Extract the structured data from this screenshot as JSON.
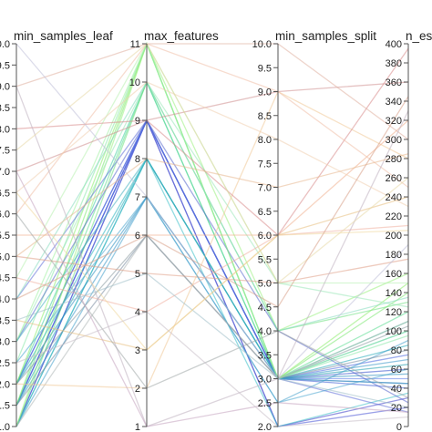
{
  "chart_data": {
    "type": "parallel_coordinates",
    "axes": [
      {
        "name": "min_samples_leaf",
        "range": [
          1.0,
          10.0
        ],
        "step": 0.5,
        "decimals": 1
      },
      {
        "name": "max_features",
        "range": [
          1,
          11
        ],
        "step": 1,
        "decimals": 0
      },
      {
        "name": "min_samples_split",
        "range": [
          2.0,
          10.0
        ],
        "step": 0.5,
        "decimals": 1
      },
      {
        "name": "n_estimators",
        "range": [
          0,
          400
        ],
        "step": 20,
        "decimals": 0
      }
    ],
    "records": [
      [
        1.0,
        9,
        3.0,
        45,
        "#3a4fd0"
      ],
      [
        1.5,
        9,
        3.0,
        60,
        "#3551cc"
      ],
      [
        2.0,
        9,
        3.0,
        40,
        "#3d5bd4"
      ],
      [
        1.5,
        9,
        2.0,
        30,
        "#4040c8"
      ],
      [
        1.0,
        9,
        2.0,
        20,
        "#4a55d6"
      ],
      [
        2.0,
        9,
        3.0,
        75,
        "#4f6ae0"
      ],
      [
        1.5,
        9,
        3.0,
        50,
        "#5a7ae8"
      ],
      [
        1.0,
        8,
        3.0,
        65,
        "#22a0b0"
      ],
      [
        1.5,
        8,
        3.0,
        85,
        "#20a8b8"
      ],
      [
        2.0,
        8,
        3.0,
        100,
        "#2cb5c0"
      ],
      [
        1.0,
        8,
        2.0,
        35,
        "#3abfc8"
      ],
      [
        2.0,
        7,
        3.0,
        55,
        "#2e8fc0"
      ],
      [
        1.5,
        7,
        3.0,
        70,
        "#3896c8"
      ],
      [
        1.0,
        7,
        2.5,
        90,
        "#46a0cc"
      ],
      [
        2.0,
        10,
        3.0,
        110,
        "#40d0a0"
      ],
      [
        1.5,
        10,
        3.0,
        120,
        "#5adc90"
      ],
      [
        1.0,
        10,
        4.0,
        130,
        "#6ee080"
      ],
      [
        1.5,
        11,
        3.0,
        140,
        "#7ae870"
      ],
      [
        2.0,
        11,
        3.0,
        150,
        "#8aec6a"
      ],
      [
        1.0,
        11,
        4.0,
        160,
        "#9af080"
      ],
      [
        2.5,
        11,
        3.0,
        95,
        "#88e8a8"
      ],
      [
        3.0,
        10,
        5.0,
        125,
        "#9ae8b8"
      ],
      [
        2.0,
        6,
        3.0,
        105,
        "#8a9aa0"
      ],
      [
        1.5,
        6,
        3.0,
        80,
        "#7a8ca0"
      ],
      [
        3.0,
        9,
        4.0,
        25,
        "#5566cc"
      ],
      [
        4.0,
        9,
        3.0,
        15,
        "#6070d8"
      ],
      [
        3.0,
        8,
        3.0,
        45,
        "#44b0c0"
      ],
      [
        2.5,
        7,
        2.5,
        60,
        "#4aa6d0"
      ],
      [
        3.0,
        11,
        3.0,
        100,
        "#a0f0a0"
      ],
      [
        4.0,
        10,
        4.0,
        135,
        "#88dcc0"
      ],
      [
        1.0,
        6,
        3.0,
        110,
        "#b0b8b8"
      ],
      [
        4.5,
        11,
        5.0,
        150,
        "#b8f0b0"
      ],
      [
        5.0,
        5,
        5.0,
        175,
        "#e0a088"
      ],
      [
        4.5,
        4,
        6.0,
        210,
        "#f0b0a0"
      ],
      [
        3.5,
        3,
        6.0,
        240,
        "#e8c080"
      ],
      [
        2.0,
        2,
        9.0,
        280,
        "#f0c898"
      ],
      [
        5.5,
        6,
        6.0,
        320,
        "#f0b090"
      ],
      [
        7.0,
        9,
        9.0,
        360,
        "#d09090"
      ],
      [
        8.0,
        9,
        6.0,
        395,
        "#d88c8c"
      ],
      [
        9.0,
        11,
        10.0,
        300,
        "#e0b0a0"
      ],
      [
        6.0,
        11,
        9.0,
        250,
        "#f0c0a8"
      ],
      [
        10.0,
        7,
        3.0,
        190,
        "#c0c0d8"
      ],
      [
        9.0,
        1,
        3.0,
        330,
        "#c0b0c0"
      ],
      [
        6.5,
        10,
        8.0,
        230,
        "#f0d0b0"
      ],
      [
        7.5,
        11,
        5.0,
        260,
        "#e8d8a8"
      ],
      [
        5.0,
        8,
        7.0,
        285,
        "#e8b890"
      ],
      [
        6.0,
        2,
        4.0,
        30,
        "#a0a8a8"
      ],
      [
        3.5,
        5,
        3.0,
        20,
        "#a0c0c8"
      ],
      [
        6.5,
        3,
        6.0,
        205,
        "#f0d8a0"
      ],
      [
        4.0,
        6,
        4.5,
        345,
        "#d8a088"
      ],
      [
        7.0,
        1,
        2.5,
        15,
        "#c4a4c0"
      ],
      [
        2.5,
        4,
        2.0,
        10,
        "#c8c0c8"
      ]
    ]
  }
}
